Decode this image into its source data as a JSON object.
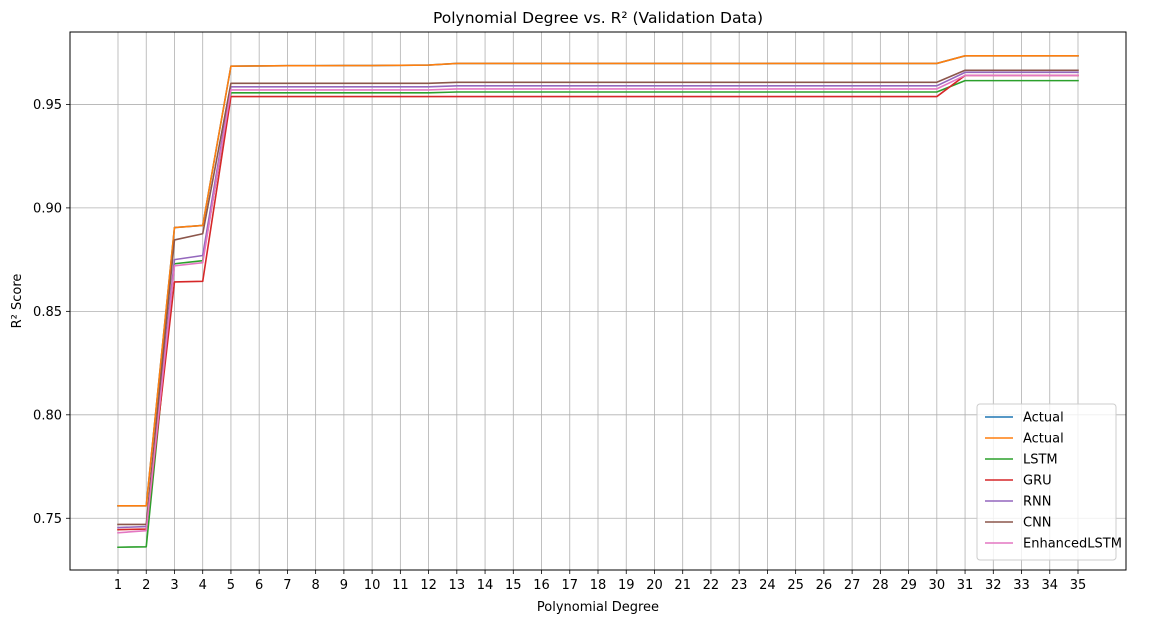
{
  "chart_data": {
    "type": "line",
    "title": "Polynomial Degree vs. R² (Validation Data)",
    "xlabel": "Polynomial Degree",
    "ylabel": "R² Score",
    "x": [
      1,
      2,
      3,
      4,
      5,
      6,
      7,
      8,
      9,
      10,
      11,
      12,
      13,
      14,
      15,
      16,
      17,
      18,
      19,
      20,
      21,
      22,
      23,
      24,
      25,
      26,
      27,
      28,
      29,
      30,
      31,
      32,
      33,
      34,
      35
    ],
    "xlim": [
      -0.7,
      36.7
    ],
    "ylim": [
      0.725,
      0.985
    ],
    "yticks": [
      0.75,
      0.8,
      0.85,
      0.9,
      0.95
    ],
    "ytick_labels": [
      "0.75",
      "0.80",
      "0.85",
      "0.90",
      "0.95"
    ],
    "grid": true,
    "legend_position": "lower-right",
    "series": [
      {
        "name": "Actual",
        "color": "#1f77b4",
        "values": [
          0.756,
          0.756,
          0.8905,
          0.8915,
          0.9685,
          0.9686,
          0.9687,
          0.9687,
          0.9688,
          0.9688,
          0.9689,
          0.969,
          0.9698,
          0.9698,
          0.9698,
          0.9698,
          0.9698,
          0.9698,
          0.9698,
          0.9698,
          0.9698,
          0.9698,
          0.9698,
          0.9698,
          0.9698,
          0.9698,
          0.9698,
          0.9698,
          0.9698,
          0.9698,
          0.9735,
          0.9735,
          0.9735,
          0.9735,
          0.9735
        ]
      },
      {
        "name": "Actual",
        "color": "#ff7f0e",
        "values": [
          0.756,
          0.756,
          0.8905,
          0.8915,
          0.9685,
          0.9686,
          0.9687,
          0.9687,
          0.9688,
          0.9688,
          0.9689,
          0.969,
          0.9698,
          0.9698,
          0.9698,
          0.9698,
          0.9698,
          0.9698,
          0.9698,
          0.9698,
          0.9698,
          0.9698,
          0.9698,
          0.9698,
          0.9698,
          0.9698,
          0.9698,
          0.9698,
          0.9698,
          0.9698,
          0.9735,
          0.9735,
          0.9735,
          0.9735,
          0.9735
        ]
      },
      {
        "name": "LSTM",
        "color": "#2ca02c",
        "values": [
          0.736,
          0.7362,
          0.873,
          0.8745,
          0.9556,
          0.9556,
          0.9556,
          0.9556,
          0.9556,
          0.9556,
          0.9556,
          0.9556,
          0.956,
          0.956,
          0.956,
          0.956,
          0.956,
          0.956,
          0.956,
          0.956,
          0.956,
          0.956,
          0.956,
          0.956,
          0.956,
          0.956,
          0.956,
          0.956,
          0.956,
          0.956,
          0.9615,
          0.9615,
          0.9615,
          0.9615,
          0.9615
        ]
      },
      {
        "name": "GRU",
        "color": "#d62728",
        "values": [
          0.7445,
          0.7448,
          0.8642,
          0.8645,
          0.9538,
          0.9538,
          0.9538,
          0.9538,
          0.9538,
          0.9538,
          0.9538,
          0.9538,
          0.9538,
          0.9538,
          0.9538,
          0.9538,
          0.9538,
          0.9538,
          0.9538,
          0.9538,
          0.9538,
          0.9538,
          0.9538,
          0.9538,
          0.9538,
          0.9538,
          0.9538,
          0.9538,
          0.9538,
          0.9538,
          0.964,
          0.964,
          0.964,
          0.964,
          0.964
        ]
      },
      {
        "name": "RNN",
        "color": "#9467bd",
        "values": [
          0.7455,
          0.746,
          0.875,
          0.877,
          0.9585,
          0.9585,
          0.9585,
          0.9585,
          0.9585,
          0.9585,
          0.9585,
          0.9585,
          0.959,
          0.959,
          0.959,
          0.959,
          0.959,
          0.959,
          0.959,
          0.959,
          0.959,
          0.959,
          0.959,
          0.959,
          0.959,
          0.959,
          0.959,
          0.959,
          0.959,
          0.959,
          0.9655,
          0.9655,
          0.9655,
          0.9655,
          0.9655
        ]
      },
      {
        "name": "CNN",
        "color": "#8c564b",
        "values": [
          0.747,
          0.747,
          0.8845,
          0.8875,
          0.9602,
          0.9602,
          0.9602,
          0.9602,
          0.9602,
          0.9602,
          0.9602,
          0.9602,
          0.9607,
          0.9607,
          0.9607,
          0.9607,
          0.9607,
          0.9607,
          0.9607,
          0.9607,
          0.9607,
          0.9607,
          0.9607,
          0.9607,
          0.9607,
          0.9607,
          0.9607,
          0.9607,
          0.9607,
          0.9607,
          0.9665,
          0.9665,
          0.9665,
          0.9665,
          0.9665
        ]
      },
      {
        "name": "EnhancedLSTM",
        "color": "#e377c2",
        "values": [
          0.743,
          0.744,
          0.872,
          0.8735,
          0.957,
          0.957,
          0.957,
          0.957,
          0.957,
          0.957,
          0.957,
          0.957,
          0.9575,
          0.9575,
          0.9575,
          0.9575,
          0.9575,
          0.9575,
          0.9575,
          0.9575,
          0.9575,
          0.9575,
          0.9575,
          0.9575,
          0.9575,
          0.9575,
          0.9575,
          0.9575,
          0.9575,
          0.9575,
          0.964,
          0.964,
          0.964,
          0.964,
          0.964
        ]
      }
    ]
  }
}
